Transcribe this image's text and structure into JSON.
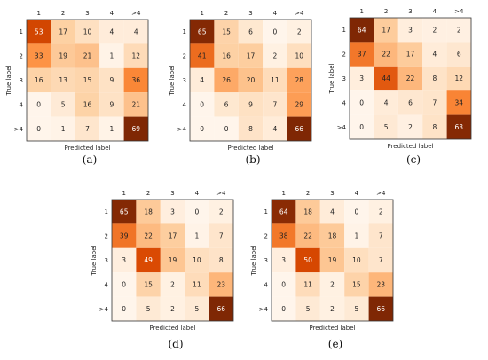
{
  "chart_data": [
    {
      "type": "heatmap",
      "panel_label": "(a)",
      "xlabel": "Predicted label",
      "ylabel": "True label",
      "x_ticks": [
        "1",
        "2",
        "3",
        "4",
        ">4"
      ],
      "y_ticks": [
        "1",
        "2",
        "3",
        "4",
        ">4"
      ],
      "values": [
        [
          53,
          17,
          10,
          4,
          4
        ],
        [
          33,
          19,
          21,
          1,
          12
        ],
        [
          16,
          13,
          15,
          9,
          36
        ],
        [
          0,
          5,
          16,
          9,
          21
        ],
        [
          0,
          1,
          7,
          1,
          69
        ]
      ]
    },
    {
      "type": "heatmap",
      "panel_label": "(b)",
      "xlabel": "Predicted label",
      "ylabel": "True label",
      "x_ticks": [
        "1",
        "2",
        "3",
        "4",
        ">4"
      ],
      "y_ticks": [
        "1",
        "2",
        "3",
        "4",
        ">4"
      ],
      "values": [
        [
          65,
          15,
          6,
          0,
          2
        ],
        [
          41,
          16,
          17,
          2,
          10
        ],
        [
          4,
          26,
          20,
          11,
          28
        ],
        [
          0,
          6,
          9,
          7,
          29
        ],
        [
          0,
          0,
          8,
          4,
          66
        ]
      ]
    },
    {
      "type": "heatmap",
      "panel_label": "(c)",
      "xlabel": "Predicted label",
      "ylabel": "True label",
      "x_ticks": [
        "1",
        "2",
        "3",
        "4",
        ">4"
      ],
      "y_ticks": [
        "1",
        "2",
        "3",
        "4",
        ">4"
      ],
      "values": [
        [
          64,
          17,
          3,
          2,
          2
        ],
        [
          37,
          22,
          17,
          4,
          6
        ],
        [
          3,
          44,
          22,
          8,
          12
        ],
        [
          0,
          4,
          6,
          7,
          34
        ],
        [
          0,
          5,
          2,
          8,
          63
        ]
      ]
    },
    {
      "type": "heatmap",
      "panel_label": "(d)",
      "xlabel": "Predicted label",
      "ylabel": "True label",
      "x_ticks": [
        "1",
        "2",
        "3",
        "4",
        ">4"
      ],
      "y_ticks": [
        "1",
        "2",
        "3",
        "4",
        ">4"
      ],
      "values": [
        [
          65,
          18,
          3,
          0,
          2
        ],
        [
          39,
          22,
          17,
          1,
          7
        ],
        [
          3,
          49,
          19,
          10,
          8
        ],
        [
          0,
          15,
          2,
          11,
          23
        ],
        [
          0,
          5,
          2,
          5,
          66
        ]
      ]
    },
    {
      "type": "heatmap",
      "panel_label": "(e)",
      "xlabel": "Predicted label",
      "ylabel": "True label",
      "x_ticks": [
        "1",
        "2",
        "3",
        "4",
        ">4"
      ],
      "y_ticks": [
        "1",
        "2",
        "3",
        "4",
        ">4"
      ],
      "values": [
        [
          64,
          18,
          4,
          0,
          2
        ],
        [
          38,
          22,
          18,
          1,
          7
        ],
        [
          3,
          50,
          19,
          10,
          7
        ],
        [
          0,
          11,
          2,
          15,
          23
        ],
        [
          0,
          5,
          2,
          5,
          66
        ]
      ]
    }
  ],
  "colormap": {
    "name": "Oranges",
    "low": "#fff5eb",
    "mid": "#fd8d3c",
    "high": "#7f2704",
    "text_dark": "#222222",
    "text_light": "#ffffff"
  }
}
